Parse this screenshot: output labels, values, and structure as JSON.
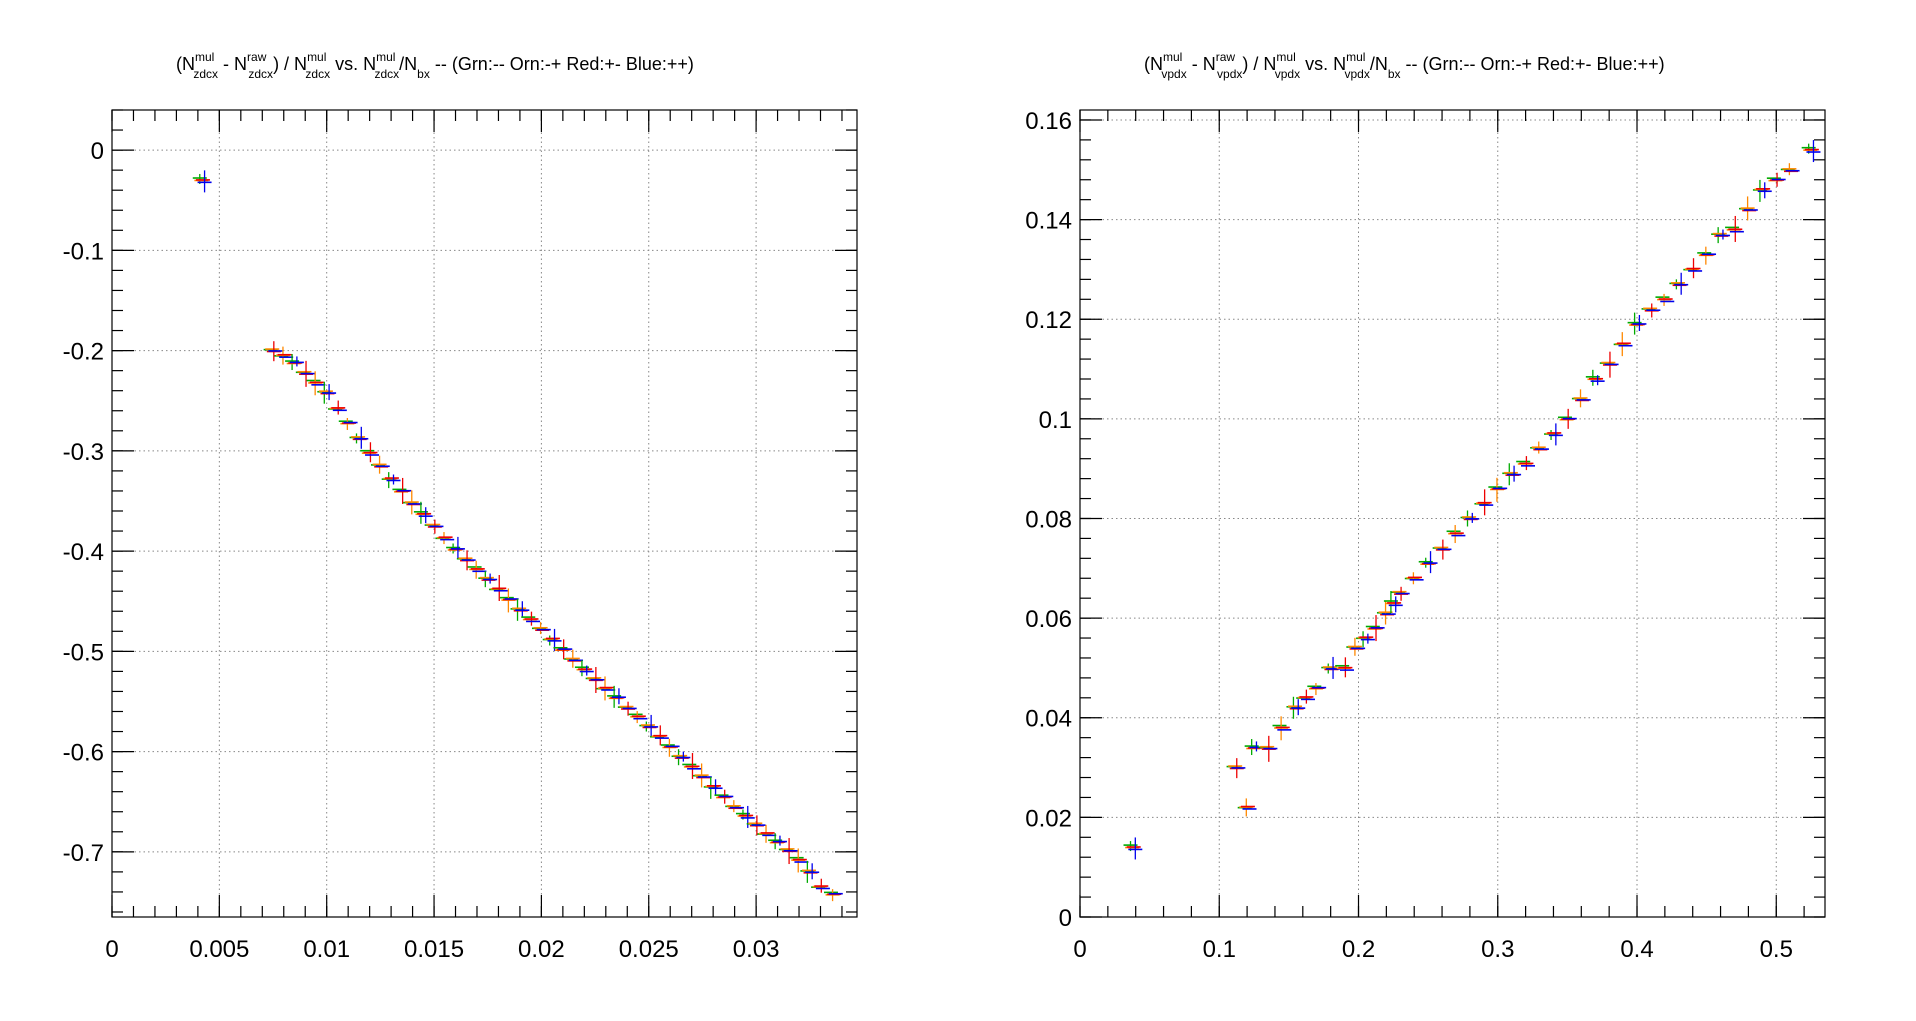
{
  "chart_data": [
    {
      "type": "scatter",
      "title": {
        "prefix": "(N",
        "sup1": "mul",
        "sub1": "zdcx",
        "mid1": " - N",
        "sup2": "raw",
        "sub2": "zdcx",
        "mid2": ") / N",
        "sup3": "mul",
        "sub3": "zdcx",
        "mid3": "  vs. N",
        "sup4": "mul",
        "sub4": "zdcx",
        "mid4": "/N",
        "sub5": "bx",
        "suffix": " -- (Grn:-- Orn:-+ Red:+- Blue:++)"
      },
      "xlabel": "",
      "ylabel": "",
      "xlim": [
        0,
        0.0347
      ],
      "ylim": [
        -0.765,
        0.04
      ],
      "x_ticks": [
        0,
        0.005,
        0.01,
        0.015,
        0.02,
        0.025,
        0.03
      ],
      "x_tick_labels": [
        "0",
        "0.005",
        "0.01",
        "0.015",
        "0.02",
        "0.025",
        "0.03"
      ],
      "y_ticks": [
        0,
        -0.1,
        -0.2,
        -0.3,
        -0.4,
        -0.5,
        -0.6,
        -0.7
      ],
      "y_tick_labels": [
        "0",
        "-0.1",
        "-0.2",
        "-0.3",
        "-0.4",
        "-0.5",
        "-0.6",
        "-0.7"
      ],
      "grid": true,
      "series_colors": [
        "#00aa00",
        "#ff8800",
        "#ee0000",
        "#0000ee"
      ],
      "points": [
        [
          0.0042,
          -0.03
        ],
        [
          0.0075,
          -0.2
        ],
        [
          0.008,
          -0.205
        ],
        [
          0.0085,
          -0.212
        ],
        [
          0.009,
          -0.222
        ],
        [
          0.0095,
          -0.232
        ],
        [
          0.01,
          -0.242
        ],
        [
          0.0105,
          -0.258
        ],
        [
          0.011,
          -0.272
        ],
        [
          0.0115,
          -0.287
        ],
        [
          0.012,
          -0.302
        ],
        [
          0.0125,
          -0.315
        ],
        [
          0.013,
          -0.328
        ],
        [
          0.0135,
          -0.34
        ],
        [
          0.014,
          -0.352
        ],
        [
          0.0145,
          -0.363
        ],
        [
          0.015,
          -0.375
        ],
        [
          0.0155,
          -0.387
        ],
        [
          0.016,
          -0.398
        ],
        [
          0.0165,
          -0.408
        ],
        [
          0.017,
          -0.418
        ],
        [
          0.0175,
          -0.428
        ],
        [
          0.018,
          -0.438
        ],
        [
          0.0185,
          -0.448
        ],
        [
          0.019,
          -0.458
        ],
        [
          0.0195,
          -0.468
        ],
        [
          0.02,
          -0.478
        ],
        [
          0.0205,
          -0.488
        ],
        [
          0.021,
          -0.498
        ],
        [
          0.0215,
          -0.508
        ],
        [
          0.022,
          -0.518
        ],
        [
          0.0225,
          -0.528
        ],
        [
          0.023,
          -0.537
        ],
        [
          0.0235,
          -0.546
        ],
        [
          0.024,
          -0.556
        ],
        [
          0.0245,
          -0.565
        ],
        [
          0.025,
          -0.575
        ],
        [
          0.0255,
          -0.585
        ],
        [
          0.026,
          -0.595
        ],
        [
          0.0265,
          -0.605
        ],
        [
          0.027,
          -0.615
        ],
        [
          0.0275,
          -0.625
        ],
        [
          0.028,
          -0.635
        ],
        [
          0.0285,
          -0.645
        ],
        [
          0.029,
          -0.655
        ],
        [
          0.0295,
          -0.664
        ],
        [
          0.03,
          -0.673
        ],
        [
          0.0305,
          -0.682
        ],
        [
          0.031,
          -0.69
        ],
        [
          0.0315,
          -0.698
        ],
        [
          0.032,
          -0.708
        ],
        [
          0.0325,
          -0.72
        ],
        [
          0.033,
          -0.735
        ],
        [
          0.0336,
          -0.742
        ]
      ]
    },
    {
      "type": "scatter",
      "title": {
        "prefix": "(N",
        "sup1": "mul",
        "sub1": "vpdx",
        "mid1": " - N",
        "sup2": "raw",
        "sub2": "vpdx",
        "mid2": ") / N",
        "sup3": "mul",
        "sub3": "vpdx",
        "mid3": "  vs. N",
        "sup4": "mul",
        "sub4": "vpdx",
        "mid4": "/N",
        "sub5": "bx",
        "suffix": " -- (Grn:-- Orn:-+ Red:+- Blue:++)"
      },
      "xlabel": "",
      "ylabel": "",
      "xlim": [
        0,
        0.535
      ],
      "ylim": [
        0,
        0.162
      ],
      "x_ticks": [
        0,
        0.1,
        0.2,
        0.3,
        0.4,
        0.5
      ],
      "x_tick_labels": [
        "0",
        "0.1",
        "0.2",
        "0.3",
        "0.4",
        "0.5"
      ],
      "y_ticks": [
        0,
        0.02,
        0.04,
        0.06,
        0.08,
        0.1,
        0.12,
        0.14,
        0.16
      ],
      "y_tick_labels": [
        "0",
        "0.02",
        "0.04",
        "0.06",
        "0.08",
        "0.1",
        "0.12",
        "0.14",
        "0.16"
      ],
      "grid": true,
      "series_colors": [
        "#00aa00",
        "#ff8800",
        "#ee0000",
        "#0000ee"
      ],
      "points": [
        [
          0.038,
          0.014
        ],
        [
          0.112,
          0.03
        ],
        [
          0.12,
          0.022
        ],
        [
          0.125,
          0.034
        ],
        [
          0.135,
          0.034
        ],
        [
          0.145,
          0.038
        ],
        [
          0.155,
          0.042
        ],
        [
          0.162,
          0.044
        ],
        [
          0.17,
          0.046
        ],
        [
          0.18,
          0.05
        ],
        [
          0.19,
          0.05
        ],
        [
          0.198,
          0.054
        ],
        [
          0.205,
          0.056
        ],
        [
          0.212,
          0.058
        ],
        [
          0.22,
          0.061
        ],
        [
          0.225,
          0.063
        ],
        [
          0.23,
          0.065
        ],
        [
          0.24,
          0.068
        ],
        [
          0.25,
          0.071
        ],
        [
          0.26,
          0.074
        ],
        [
          0.27,
          0.077
        ],
        [
          0.28,
          0.08
        ],
        [
          0.29,
          0.083
        ],
        [
          0.3,
          0.086
        ],
        [
          0.31,
          0.089
        ],
        [
          0.32,
          0.091
        ],
        [
          0.33,
          0.094
        ],
        [
          0.34,
          0.097
        ],
        [
          0.35,
          0.1
        ],
        [
          0.36,
          0.104
        ],
        [
          0.37,
          0.108
        ],
        [
          0.38,
          0.111
        ],
        [
          0.39,
          0.115
        ],
        [
          0.4,
          0.119
        ],
        [
          0.41,
          0.122
        ],
        [
          0.42,
          0.124
        ],
        [
          0.43,
          0.127
        ],
        [
          0.44,
          0.13
        ],
        [
          0.45,
          0.133
        ],
        [
          0.46,
          0.137
        ],
        [
          0.47,
          0.138
        ],
        [
          0.48,
          0.142
        ],
        [
          0.49,
          0.146
        ],
        [
          0.5,
          0.148
        ],
        [
          0.51,
          0.15
        ],
        [
          0.525,
          0.154
        ]
      ]
    }
  ]
}
